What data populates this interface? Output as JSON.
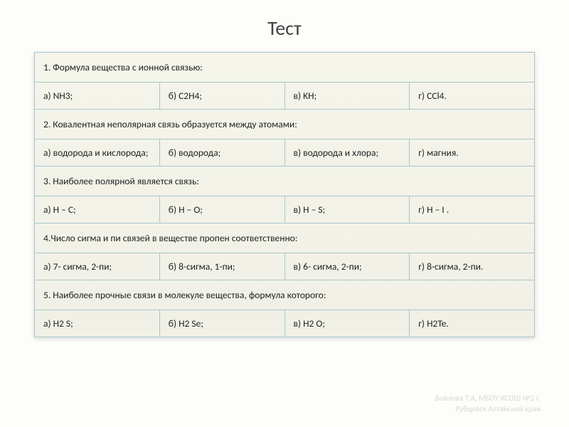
{
  "title": "Тест",
  "table": {
    "border_color": "#a9c5cc",
    "bg_color": "#f2f2e8",
    "text_color": "#222",
    "font_size": 13.5,
    "rows": [
      {
        "type": "question",
        "text": "1. Формула вещества с ионной связью:"
      },
      {
        "type": "answers",
        "cells": [
          "а) NH3;",
          "б) C2H4;",
          "в) KH;",
          "г) CCl4."
        ]
      },
      {
        "type": "question",
        "text": "2. Ковалентная неполярная связь образуется между атомами:"
      },
      {
        "type": "answers",
        "cells": [
          "а) водорода и кислорода;",
          "б) водорода;",
          "в) водорода и хлора;",
          "г) магния."
        ]
      },
      {
        "type": "question",
        "text": "3. Наиболее полярной является связь:"
      },
      {
        "type": "answers",
        "cells": [
          "а) H – C;",
          "б) H – O;",
          "в) H – S;",
          "г)  H – I ."
        ]
      },
      {
        "type": "question",
        "text": "4.Число сигма и пи связей в веществе пропен соответственно:"
      },
      {
        "type": "answers",
        "cells": [
          "а) 7- сигма, 2-пи;",
          "б) 8-сигма, 1-пи;",
          "в) 6- сигма, 2-пи;",
          "г) 8-сигма, 2-пи."
        ]
      },
      {
        "type": "question",
        "text": "5. Наиболее прочные связи в молекуле вещества, формула которого:"
      },
      {
        "type": "answers",
        "cells": [
          "а) H2 S;",
          "б) H2 Se;",
          "в) H2 O;",
          "г) H2Te."
        ]
      }
    ]
  },
  "footer": {
    "line1": "Войлова Т.А, МБОУ КСОШ №2 г.",
    "line2": "Рубцовск Алтайский край"
  }
}
